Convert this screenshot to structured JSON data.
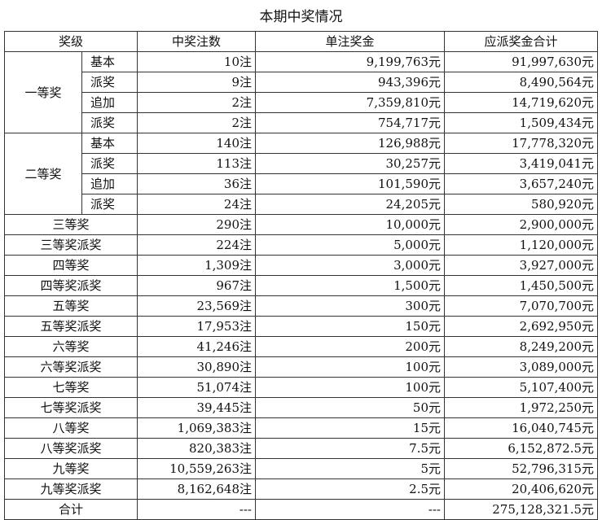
{
  "title": "本期中奖情况",
  "headers": [
    "奖级",
    "中奖注数",
    "单注奖金",
    "应派奖金合计"
  ],
  "groups": [
    {
      "name": "一等奖",
      "rows": [
        {
          "sub": "基本",
          "count": "10注",
          "prize": "9,199,763元",
          "total": "91,997,630元"
        },
        {
          "sub": "派奖",
          "count": "9注",
          "prize": "943,396元",
          "total": "8,490,564元"
        },
        {
          "sub": "追加",
          "count": "2注",
          "prize": "7,359,810元",
          "total": "14,719,620元"
        },
        {
          "sub": "派奖",
          "count": "2注",
          "prize": "754,717元",
          "total": "1,509,434元"
        }
      ]
    },
    {
      "name": "二等奖",
      "rows": [
        {
          "sub": "基本",
          "count": "140注",
          "prize": "126,988元",
          "total": "17,778,320元"
        },
        {
          "sub": "派奖",
          "count": "113注",
          "prize": "30,257元",
          "total": "3,419,041元"
        },
        {
          "sub": "追加",
          "count": "36注",
          "prize": "101,590元",
          "total": "3,657,240元"
        },
        {
          "sub": "派奖",
          "count": "24注",
          "prize": "24,205元",
          "total": "580,920元"
        }
      ]
    }
  ],
  "rows": [
    {
      "level": "三等奖",
      "count": "290注",
      "prize": "10,000元",
      "total": "2,900,000元"
    },
    {
      "level": "三等奖派奖",
      "count": "224注",
      "prize": "5,000元",
      "total": "1,120,000元"
    },
    {
      "level": "四等奖",
      "count": "1,309注",
      "prize": "3,000元",
      "total": "3,927,000元"
    },
    {
      "level": "四等奖派奖",
      "count": "967注",
      "prize": "1,500元",
      "total": "1,450,500元"
    },
    {
      "level": "五等奖",
      "count": "23,569注",
      "prize": "300元",
      "total": "7,070,700元"
    },
    {
      "level": "五等奖派奖",
      "count": "17,953注",
      "prize": "150元",
      "total": "2,692,950元"
    },
    {
      "level": "六等奖",
      "count": "41,246注",
      "prize": "200元",
      "total": "8,249,200元"
    },
    {
      "level": "六等奖派奖",
      "count": "30,890注",
      "prize": "100元",
      "total": "3,089,000元"
    },
    {
      "level": "七等奖",
      "count": "51,074注",
      "prize": "100元",
      "total": "5,107,400元"
    },
    {
      "level": "七等奖派奖",
      "count": "39,445注",
      "prize": "50元",
      "total": "1,972,250元"
    },
    {
      "level": "八等奖",
      "count": "1,069,383注",
      "prize": "15元",
      "total": "16,040,745元"
    },
    {
      "level": "八等奖派奖",
      "count": "820,383注",
      "prize": "7.5元",
      "total": "6,152,872.5元"
    },
    {
      "level": "九等奖",
      "count": "10,559,263注",
      "prize": "5元",
      "total": "52,796,315元"
    },
    {
      "level": "九等奖派奖",
      "count": "8,162,648注",
      "prize": "2.5元",
      "total": "20,406,620元"
    },
    {
      "level": "合计",
      "count": "---",
      "prize": "---",
      "total": "275,128,321.5元"
    }
  ]
}
